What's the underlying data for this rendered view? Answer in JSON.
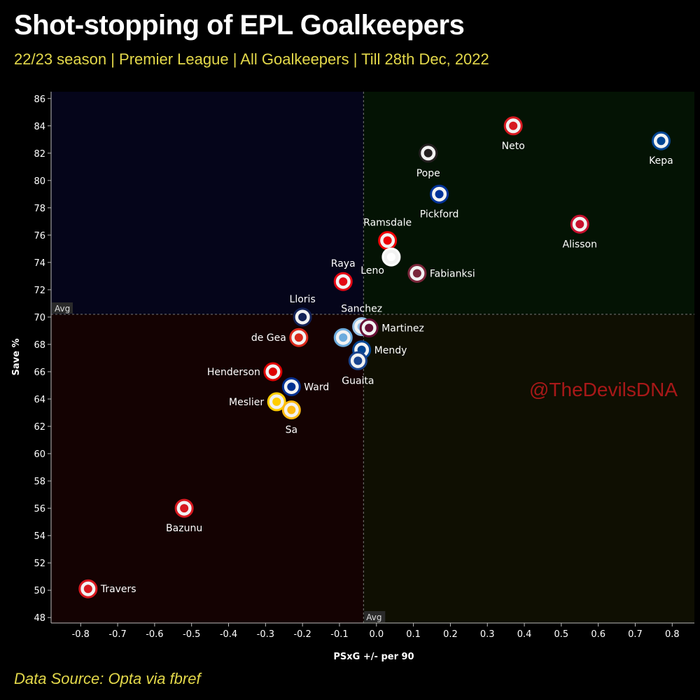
{
  "title": "Shot-stopping of EPL Goalkeepers",
  "subtitle": "22/23 season | Premier League | All Goalkeepers | Till 28th Dec, 2022",
  "source": "Data Source: Opta via fbref",
  "watermark": "@TheDevilsDNA",
  "chart_data": {
    "type": "scatter",
    "xlabel": "PSxG +/- per 90",
    "ylabel": "Save %",
    "xlim": [
      -0.88,
      0.86
    ],
    "ylim": [
      47.6,
      86.5
    ],
    "xticks": [
      -0.8,
      -0.7,
      -0.6,
      -0.5,
      -0.4,
      -0.3,
      -0.2,
      -0.1,
      0.0,
      0.1,
      0.2,
      0.3,
      0.4,
      0.5,
      0.6,
      0.7,
      0.8
    ],
    "yticks": [
      48,
      50,
      52,
      54,
      56,
      58,
      60,
      62,
      64,
      66,
      68,
      70,
      72,
      74,
      76,
      78,
      80,
      82,
      84,
      86
    ],
    "avg_x": -0.035,
    "avg_y": 70.2,
    "avg_label": "Avg",
    "grid": false,
    "points": [
      {
        "name": "Neto",
        "x": 0.37,
        "y": 84.0,
        "color": "#d71920",
        "label_pos": "below"
      },
      {
        "name": "Kepa",
        "x": 0.77,
        "y": 82.9,
        "color": "#034694",
        "label_pos": "below"
      },
      {
        "name": "Pope",
        "x": 0.14,
        "y": 82.0,
        "color": "#241f20",
        "label_pos": "below"
      },
      {
        "name": "Pickford",
        "x": 0.17,
        "y": 79.0,
        "color": "#003399",
        "label_pos": "below"
      },
      {
        "name": "Alisson",
        "x": 0.55,
        "y": 76.8,
        "color": "#c8102e",
        "label_pos": "below"
      },
      {
        "name": "Ramsdale",
        "x": 0.03,
        "y": 75.6,
        "color": "#ef0107",
        "label_pos": "above"
      },
      {
        "name": "Leno",
        "x": 0.04,
        "y": 74.4,
        "color": "#ffffff",
        "label_pos": "below-left"
      },
      {
        "name": "Fabianksi",
        "x": 0.11,
        "y": 73.2,
        "color": "#7a263a",
        "label_pos": "right"
      },
      {
        "name": "Raya",
        "x": -0.09,
        "y": 72.6,
        "color": "#e30613",
        "label_pos": "above"
      },
      {
        "name": "Lloris",
        "x": -0.2,
        "y": 70.0,
        "color": "#132257",
        "label_pos": "above"
      },
      {
        "name": "Sanchez",
        "x": -0.04,
        "y": 69.3,
        "color": "#95bfe5",
        "label_pos": "above"
      },
      {
        "name": "Martinez",
        "x": -0.02,
        "y": 69.2,
        "color": "#670e36",
        "label_pos": "right"
      },
      {
        "name": "de Gea",
        "x": -0.21,
        "y": 68.5,
        "color": "#da291c",
        "label_pos": "left"
      },
      {
        "name": "",
        "x": -0.09,
        "y": 68.5,
        "color": "#6cabdd",
        "label_pos": "none"
      },
      {
        "name": "Mendy",
        "x": -0.04,
        "y": 67.6,
        "color": "#034694",
        "label_pos": "right"
      },
      {
        "name": "Guaita",
        "x": -0.05,
        "y": 66.8,
        "color": "#1b458f",
        "label_pos": "below"
      },
      {
        "name": "Henderson",
        "x": -0.28,
        "y": 66.0,
        "color": "#dd0000",
        "label_pos": "left"
      },
      {
        "name": "Ward",
        "x": -0.23,
        "y": 64.9,
        "color": "#003090",
        "label_pos": "right"
      },
      {
        "name": "Meslier",
        "x": -0.27,
        "y": 63.8,
        "color": "#ffcd00",
        "label_pos": "left"
      },
      {
        "name": "Sa",
        "x": -0.23,
        "y": 63.2,
        "color": "#fdb913",
        "label_pos": "below"
      },
      {
        "name": "Bazunu",
        "x": -0.52,
        "y": 56.0,
        "color": "#d71920",
        "label_pos": "below"
      },
      {
        "name": "Travers",
        "x": -0.78,
        "y": 50.1,
        "color": "#d71920",
        "label_pos": "right"
      }
    ]
  }
}
